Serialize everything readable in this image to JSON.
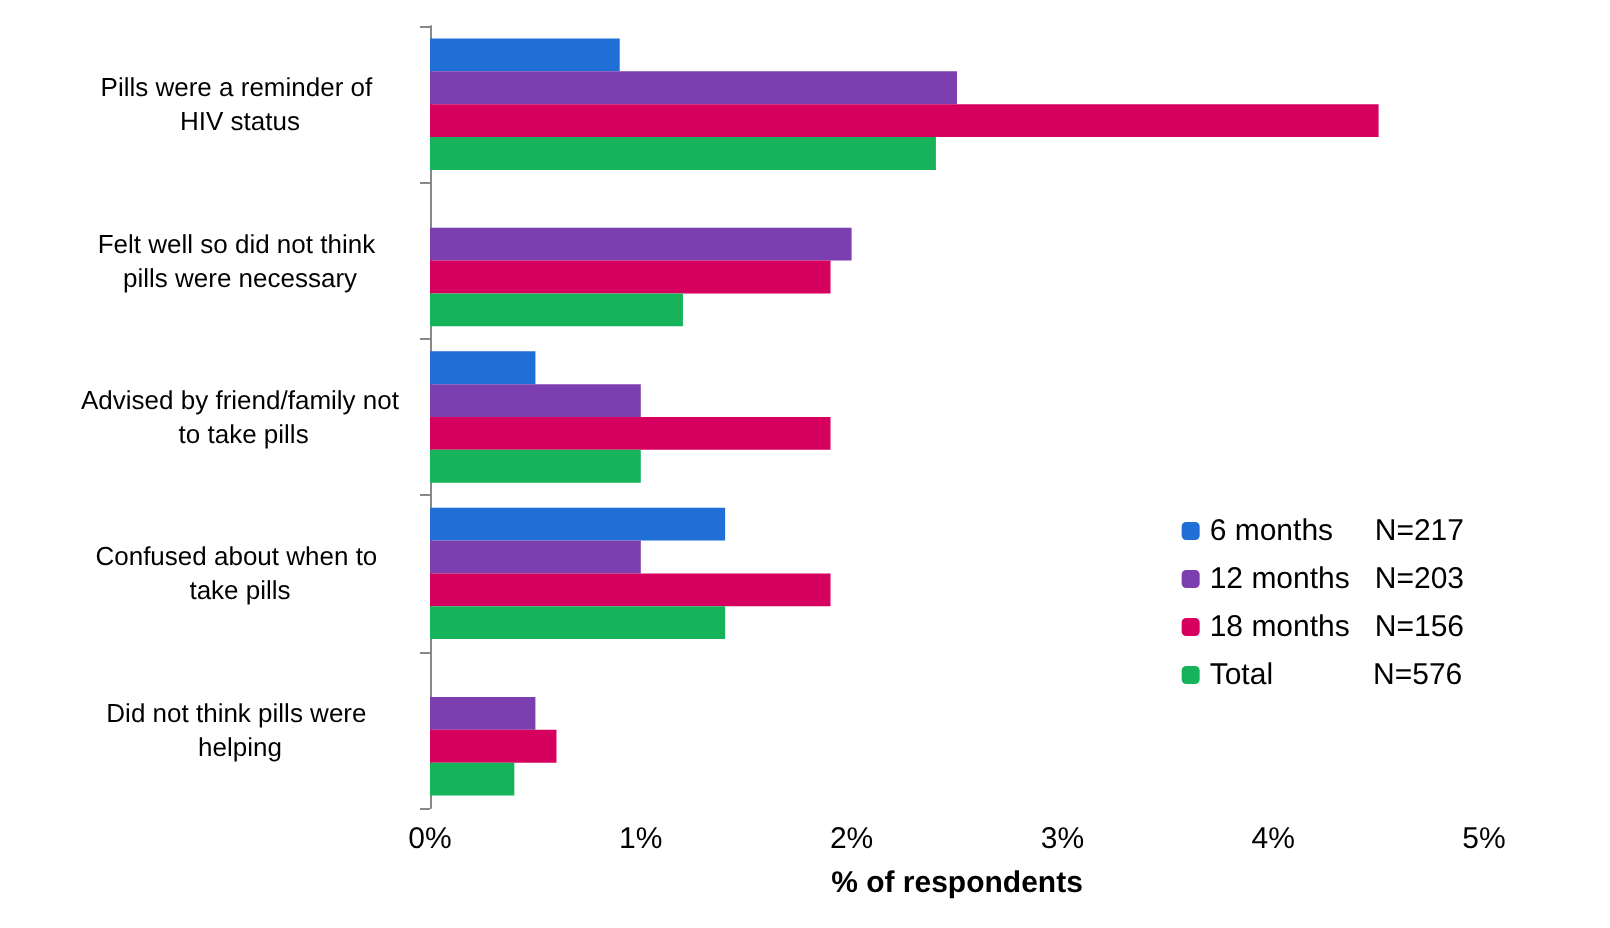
{
  "chart_data": {
    "type": "bar",
    "orientation": "horizontal",
    "xlabel": "% of respondents",
    "categories": [
      "Pills were a reminder of HIV status",
      "Felt well so did not think pills were necessary",
      "Advised by friend/family not to take pills",
      "Confused about when to take pills",
      "Did not think pills were helping"
    ],
    "series": [
      {
        "name": "6 months     N=217",
        "color": "#1f6fd6",
        "values": [
          0.9,
          null,
          0.5,
          1.4,
          null
        ]
      },
      {
        "name": "12 months   N=203",
        "color": "#7b3fb0",
        "values": [
          2.5,
          2.0,
          1.0,
          1.0,
          0.5
        ]
      },
      {
        "name": "18 months   N=156",
        "color": "#d6005e",
        "values": [
          4.5,
          1.9,
          1.9,
          1.9,
          0.6
        ]
      },
      {
        "name": "Total            N=576",
        "color": "#17b35a",
        "values": [
          2.4,
          1.2,
          1.0,
          1.4,
          0.4
        ]
      }
    ],
    "xlim": [
      0,
      5
    ],
    "xticks": [
      {
        "value": 0,
        "label": "0%"
      },
      {
        "value": 1,
        "label": "1%"
      },
      {
        "value": 2,
        "label": "2%"
      },
      {
        "value": 3,
        "label": "3%"
      },
      {
        "value": 4,
        "label": "4%"
      },
      {
        "value": 5,
        "label": "5%"
      }
    ],
    "grid": false,
    "legend": "right"
  }
}
